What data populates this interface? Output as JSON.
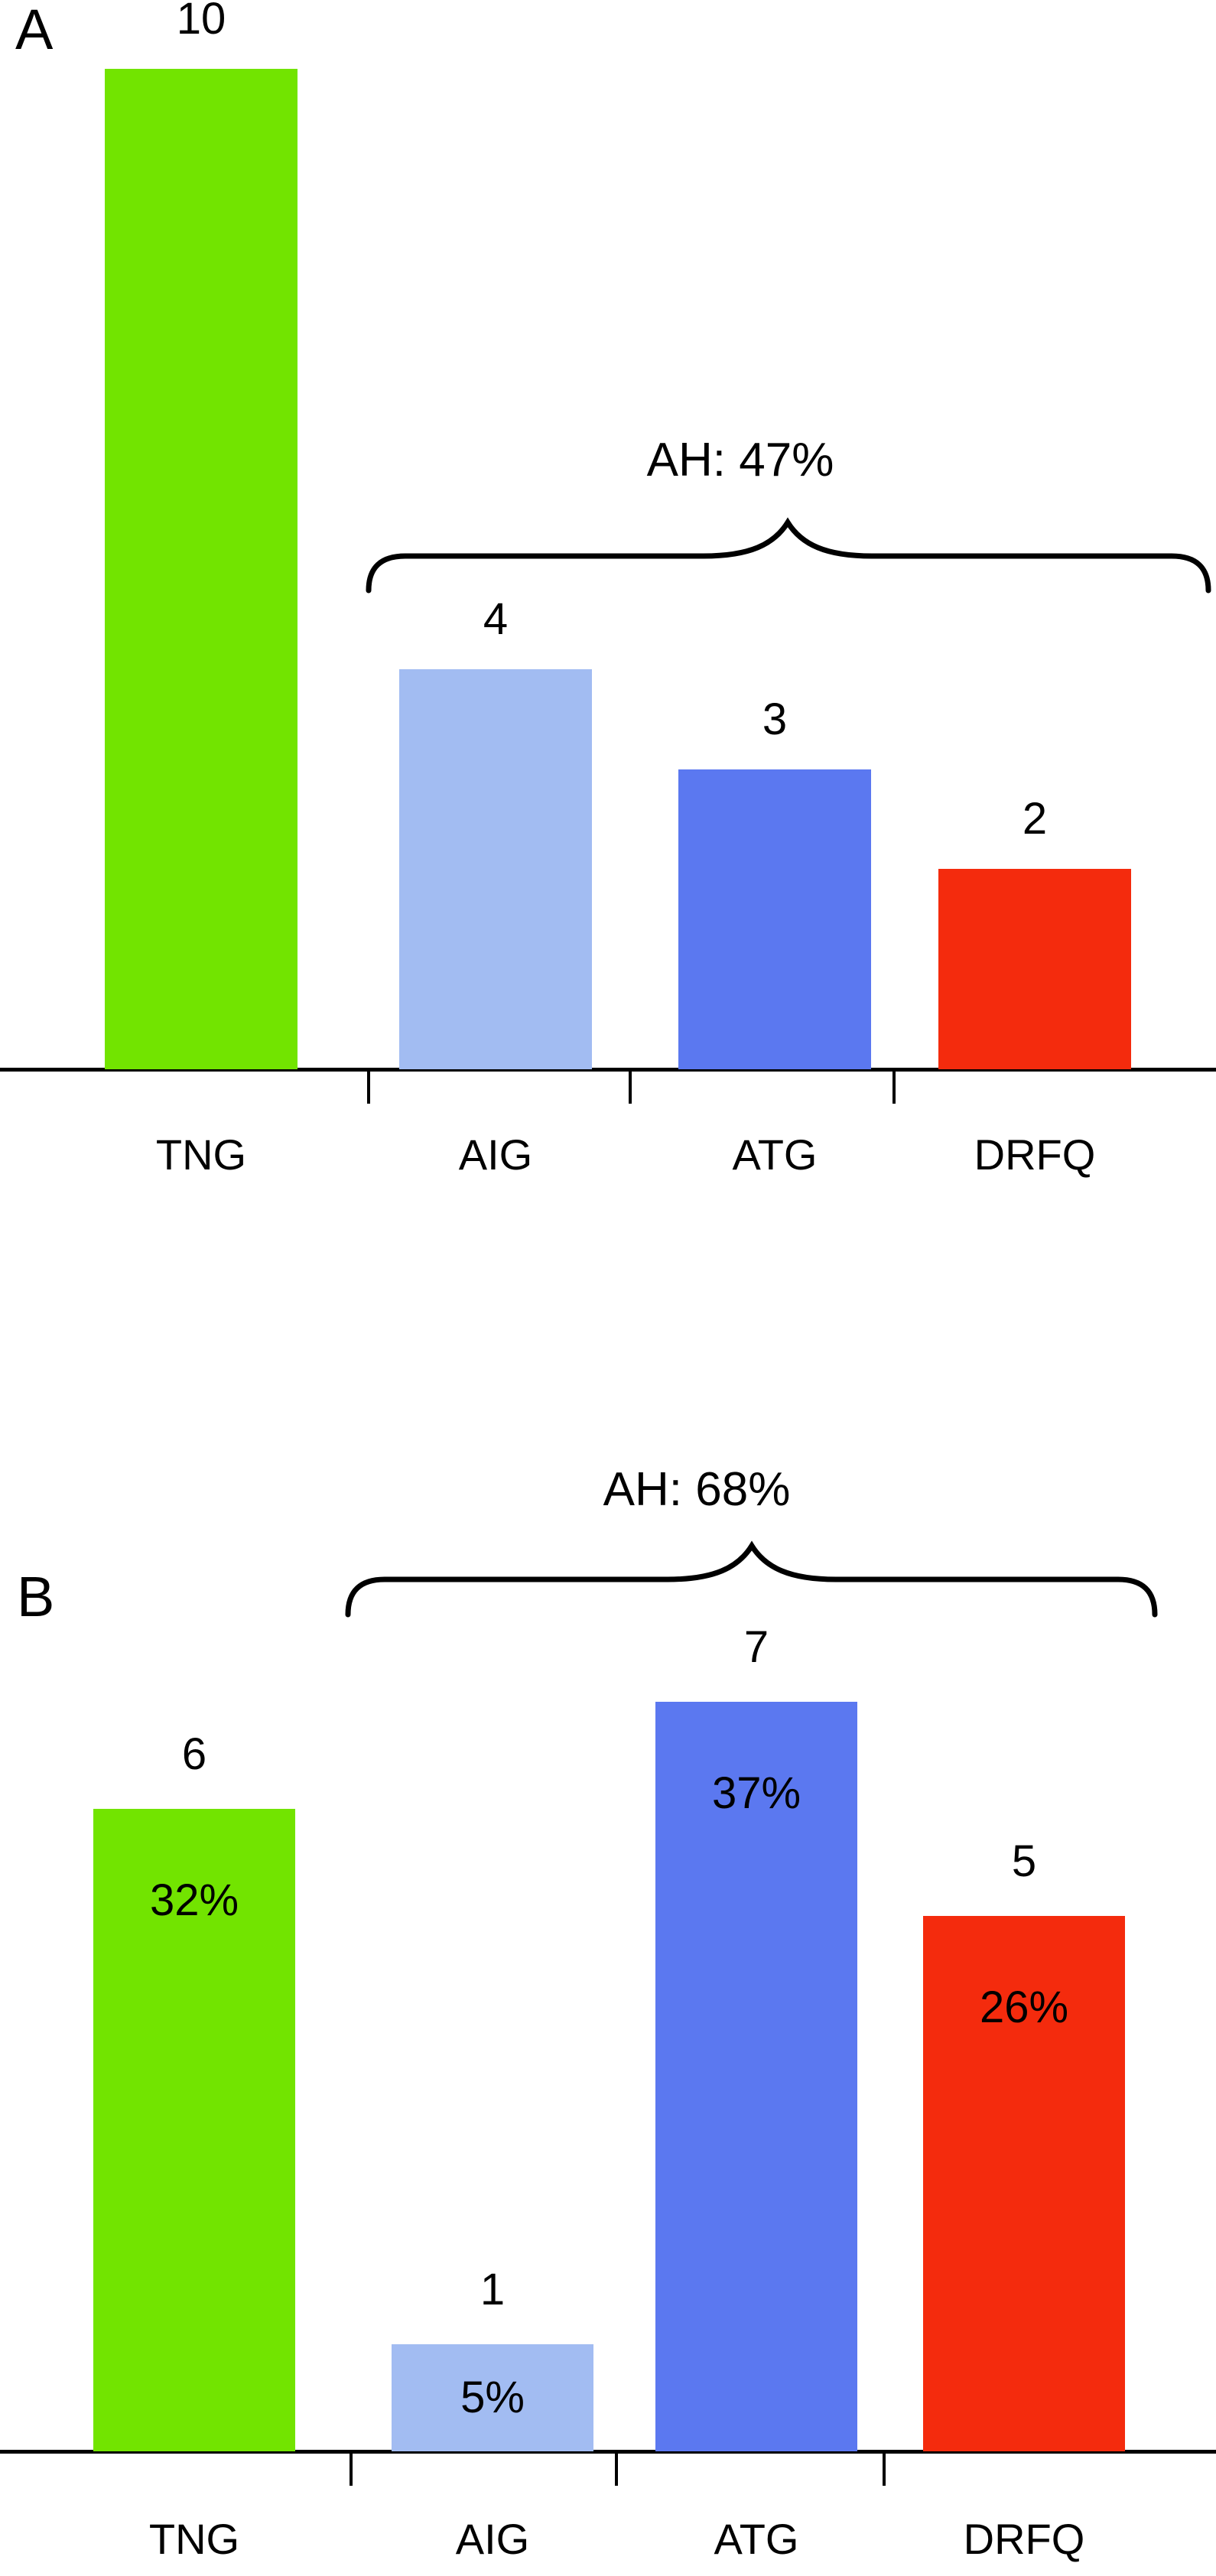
{
  "figure": {
    "background_color": "#ffffff",
    "text_color": "#000000"
  },
  "chart_data": [
    {
      "type": "bar",
      "panel_label": "A",
      "categories": [
        "TNG",
        "AIG",
        "ATG",
        "DRFQ"
      ],
      "values": [
        10,
        4,
        3,
        2
      ],
      "value_labels": [
        "10",
        "4",
        "3",
        "2"
      ],
      "bar_colors": [
        "#72E400",
        "#A2BCF2",
        "#5B78F0",
        "#F42B0D"
      ],
      "brace": {
        "label": "AH: 47%",
        "covers": [
          "AIG",
          "ATG",
          "DRFQ"
        ]
      },
      "ylim": [
        0,
        10
      ],
      "grid": false,
      "y_axis_shown": false
    },
    {
      "type": "bar",
      "panel_label": "B",
      "categories": [
        "TNG",
        "AIG",
        "ATG",
        "DRFQ"
      ],
      "values": [
        6,
        1,
        7,
        5
      ],
      "value_labels": [
        "6",
        "1",
        "7",
        "5"
      ],
      "pct_labels": [
        "32%",
        "5%",
        "37%",
        "26%"
      ],
      "bar_colors": [
        "#72E400",
        "#A2BCF2",
        "#5B78F0",
        "#F42B0D"
      ],
      "brace": {
        "label": "AH: 68%",
        "covers": [
          "AIG",
          "ATG",
          "DRFQ"
        ]
      },
      "ylim": [
        0,
        7
      ],
      "grid": false,
      "y_axis_shown": false
    }
  ]
}
